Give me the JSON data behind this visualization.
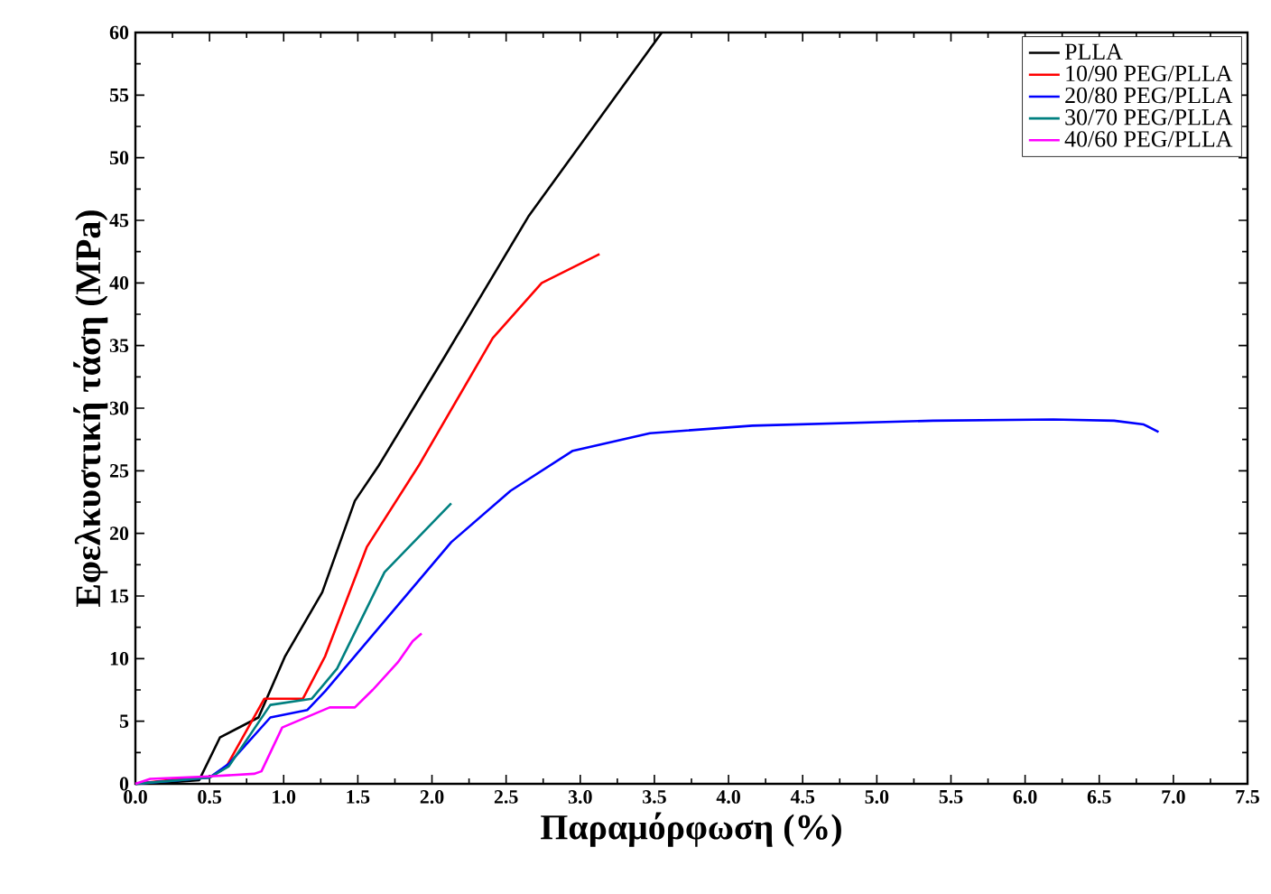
{
  "chart_data": {
    "type": "line",
    "xlabel": "Παραμόρφωση (%)",
    "ylabel": "Εφελκυστική τάση (MPa)",
    "xlim": [
      0,
      7.5
    ],
    "ylim": [
      0,
      60
    ],
    "xticks": [
      {
        "value": 0,
        "label": "0.0"
      },
      {
        "value": 0.5,
        "label": "0.5"
      },
      {
        "value": 1,
        "label": "1.0"
      },
      {
        "value": 1.5,
        "label": "1.5"
      },
      {
        "value": 2,
        "label": "2.0"
      },
      {
        "value": 2.5,
        "label": "2.5"
      },
      {
        "value": 3,
        "label": "3.0"
      },
      {
        "value": 3.5,
        "label": "3.5"
      },
      {
        "value": 4,
        "label": "4.0"
      },
      {
        "value": 4.5,
        "label": "4.5"
      },
      {
        "value": 5,
        "label": "5.0"
      },
      {
        "value": 5.5,
        "label": "5.5"
      },
      {
        "value": 6,
        "label": "6.0"
      },
      {
        "value": 6.5,
        "label": "6.5"
      },
      {
        "value": 7,
        "label": "7.0"
      },
      {
        "value": 7.5,
        "label": "7.5"
      }
    ],
    "yticks": [
      0,
      5,
      10,
      15,
      20,
      25,
      30,
      35,
      40,
      45,
      50,
      55,
      60
    ],
    "grid": false,
    "legend": "top right",
    "marker": "none",
    "line_style": "solid",
    "series": [
      {
        "name": "PLLA",
        "color": "#000000",
        "x": [
          0,
          0.2,
          0.43,
          0.57,
          0.83,
          1.01,
          1.26,
          1.48,
          1.64,
          2.09,
          2.65,
          3.55
        ],
        "values": [
          0,
          0.1,
          0.3,
          3.7,
          5.3,
          10.2,
          15.3,
          22.6,
          25.4,
          34.2,
          45.3,
          60
        ]
      },
      {
        "name": "10/90 PEG/PLLA",
        "color": "#ff0000",
        "x": [
          0,
          0.3,
          0.5,
          0.61,
          0.87,
          1.13,
          1.28,
          1.56,
          1.91,
          2.41,
          2.74,
          3.13
        ],
        "values": [
          0,
          0.4,
          0.5,
          1.3,
          6.8,
          6.8,
          10.2,
          18.9,
          25.4,
          35.6,
          40,
          42.3
        ]
      },
      {
        "name": "20/80 PEG/PLLA",
        "color": "#0000ff",
        "x": [
          0,
          0.3,
          0.5,
          0.63,
          0.91,
          1.16,
          1.28,
          2.13,
          2.53,
          2.95,
          3.47,
          4.16,
          5.38,
          6.19,
          6.6,
          6.8,
          6.9
        ],
        "values": [
          0,
          0.3,
          0.5,
          1.6,
          5.3,
          5.9,
          7.4,
          19.3,
          23.4,
          26.6,
          28,
          28.6,
          29,
          29.1,
          29,
          28.7,
          28.1
        ]
      },
      {
        "name": "30/70 PEG/PLLA",
        "color": "#008080",
        "x": [
          0,
          0.3,
          0.5,
          0.63,
          0.91,
          1.19,
          1.36,
          1.68,
          2.13
        ],
        "values": [
          0,
          0.3,
          0.5,
          1.4,
          6.3,
          6.8,
          9.2,
          16.9,
          22.4
        ]
      },
      {
        "name": "40/60 PEG/PLLA",
        "color": "#ff00ff",
        "x": [
          0,
          0.1,
          0.5,
          0.8,
          0.85,
          0.99,
          1.31,
          1.48,
          1.6,
          1.77,
          1.87,
          1.93
        ],
        "values": [
          0,
          0.4,
          0.6,
          0.8,
          1,
          4.5,
          6.1,
          6.1,
          7.5,
          9.7,
          11.4,
          12
        ]
      }
    ]
  }
}
